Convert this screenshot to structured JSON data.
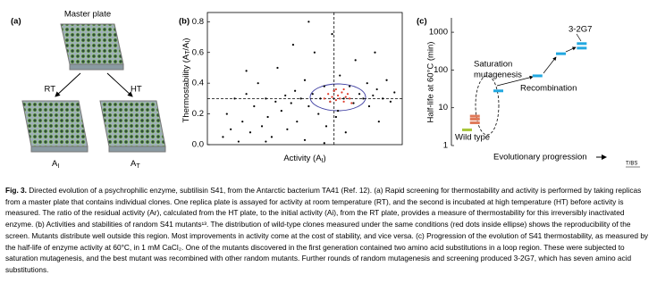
{
  "panel_a": {
    "label": "(a)",
    "master": "Master plate",
    "rt": "RT",
    "ht": "HT",
    "rt_plate": [
      "A",
      "I"
    ],
    "ht_plate": [
      "A",
      "T"
    ]
  },
  "chart_data": [
    {
      "type": "scatter",
      "panel_label": "(b)",
      "xlabel_parts": [
        "Activity (A",
        "I",
        ")"
      ],
      "ylabel_parts": [
        "Thermostability (A",
        "T",
        "/A",
        "I",
        ")"
      ],
      "xlim": [
        0,
        1
      ],
      "ylim": [
        0,
        0.86
      ],
      "yticks": [
        {
          "value": 0,
          "label": "0.0"
        },
        {
          "value": 0.2,
          "label": "0.2"
        },
        {
          "value": 0.4,
          "label": "0.4"
        },
        {
          "value": 0.6,
          "label": "0.6"
        },
        {
          "value": 0.8,
          "label": "0.8"
        }
      ],
      "vline": 0.65,
      "hline": 0.3,
      "series": [
        {
          "color": "#000000",
          "x": [
            0.08,
            0.1,
            0.12,
            0.14,
            0.16,
            0.18,
            0.2,
            0.22,
            0.24,
            0.26,
            0.28,
            0.3,
            0.31,
            0.33,
            0.35,
            0.36,
            0.38,
            0.4,
            0.41,
            0.43,
            0.45,
            0.46,
            0.48,
            0.5,
            0.5,
            0.52,
            0.54,
            0.55,
            0.57,
            0.58,
            0.6,
            0.61,
            0.63,
            0.64,
            0.65,
            0.67,
            0.68,
            0.7,
            0.71,
            0.73,
            0.75,
            0.76,
            0.78,
            0.8,
            0.82,
            0.83,
            0.85,
            0.87,
            0.88,
            0.9,
            0.92,
            0.94,
            0.96,
            0.52,
            0.44,
            0.3,
            0.6,
            0.86,
            0.2,
            0.66
          ],
          "values": [
            0.05,
            0.2,
            0.1,
            0.3,
            0.02,
            0.15,
            0.33,
            0.08,
            0.25,
            0.4,
            0.12,
            0.3,
            0.18,
            0.05,
            0.28,
            0.5,
            0.22,
            0.32,
            0.1,
            0.27,
            0.35,
            0.15,
            0.3,
            0.42,
            0.03,
            0.25,
            0.33,
            0.6,
            0.2,
            0.3,
            0.38,
            0.12,
            0.28,
            0.72,
            0.35,
            0.22,
            0.45,
            0.3,
            0.08,
            0.38,
            0.27,
            0.55,
            0.33,
            0.3,
            0.4,
            0.25,
            0.32,
            0.36,
            0.15,
            0.3,
            0.42,
            0.28,
            0.34,
            0.8,
            0.65,
            0.02,
            0.01,
            0.6,
            0.48,
            0.18
          ]
        },
        {
          "color": "#e03a2a",
          "x": [
            0.6,
            0.62,
            0.63,
            0.64,
            0.65,
            0.66,
            0.67,
            0.68,
            0.69,
            0.7,
            0.71,
            0.72,
            0.73,
            0.74,
            0.66,
            0.7
          ],
          "values": [
            0.3,
            0.33,
            0.28,
            0.31,
            0.35,
            0.29,
            0.32,
            0.3,
            0.34,
            0.28,
            0.31,
            0.33,
            0.3,
            0.27,
            0.36,
            0.36
          ]
        }
      ]
    },
    {
      "type": "dash",
      "panel_label": "(c)",
      "ylabel": "Half-life at 60°C (min)",
      "xlabel": "Evolutionary progression",
      "log_y": true,
      "xlim": [
        0,
        6
      ],
      "ylim": [
        1,
        2400
      ],
      "yticks": [
        1,
        10,
        100,
        1000
      ],
      "series": [
        {
          "color": "#a8c63a",
          "x": [
            0.6
          ],
          "values": [
            2.6
          ]
        },
        {
          "color": "#e07a5a",
          "x": [
            0.9,
            0.9,
            0.9
          ],
          "values": [
            4,
            5,
            6
          ]
        },
        {
          "color": "#22a8e0",
          "x": [
            1.8,
            3.3,
            4.2,
            5,
            5
          ],
          "values": [
            28,
            70,
            270,
            380,
            500
          ]
        }
      ],
      "annotations": [
        "Saturation",
        "mutagenesis",
        "Recombination",
        "3-2G7",
        "Wild type"
      ]
    }
  ],
  "caption": {
    "label": "Fig. 3.",
    "text": " Directed evolution of a psychrophilic enzyme, subtilisin S41, from the Antarctic bacterium TA41 (Ref. 12). (a) Rapid screening for thermostability and activity is performed by taking replicas from a master plate that contains individual clones. One replica plate is assayed for activity at room temperature (RT), and the second is incubated at high temperature (HT) before activity is measured. The ratio of the residual activity (Ar), calculated from the HT plate, to the initial activity (Ai), from the RT plate, provides a measure of thermostability for this irreversibly inactivated enzyme. (b) Activities and stabilities of random S41 mutants¹³. The distribution of wild-type clones measured under the same conditions (red dots inside ellipse) shows the reproducibility of the screen. Mutants distribute well outside this region. Most improvements in activity come at the cost of stability, and vice versa. (c) Progression of the evolution of S41 thermostability, as measured by the half-life of enzyme activity at 60°C, in 1 mM CaCl₂. One of the mutants discovered in the first generation contained two amino acid substitutions in a loop region. These were subjected to saturation mutagenesis, and the best mutant was recombined with other random mutants. Further rounds of random mutagenesis and screening produced 3-2G7, which has seven amino acid substitutions."
  },
  "credit": "T/BS"
}
